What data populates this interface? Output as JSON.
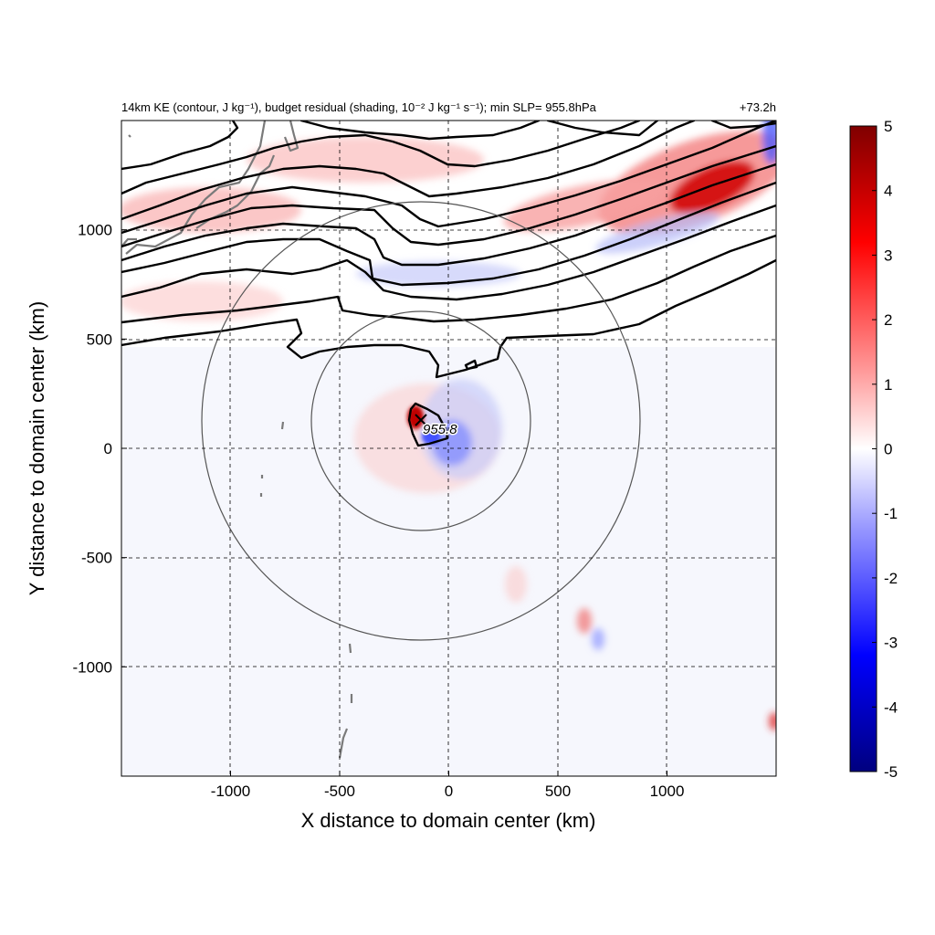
{
  "chart_data": {
    "type": "heatmap",
    "title": "14km KE (contour, J kg⁻¹), budget residual (shading, 10⁻² J kg⁻¹ s⁻¹); min SLP= 955.8hPa",
    "title_right": "+73.2h",
    "xlabel": "X distance to domain center (km)",
    "ylabel": "Y distance to domain center (km)",
    "xlim": [
      -1500,
      1500
    ],
    "ylim": [
      -1500,
      1500
    ],
    "x_ticks": [
      -1000,
      -500,
      0,
      500,
      1000
    ],
    "y_ticks": [
      -1000,
      -500,
      0,
      500,
      1000
    ],
    "x_tick_labels": [
      "-1000",
      "-500",
      "0",
      "500",
      "1000"
    ],
    "y_tick_labels": [
      "-1000",
      "-500",
      "0",
      "500",
      "1000"
    ],
    "grid": true,
    "colorbar": {
      "range": [
        -5,
        5
      ],
      "ticks": [
        5,
        4,
        3,
        2,
        1,
        0,
        -1,
        -2,
        -3,
        -4,
        -5
      ],
      "tick_labels": [
        "5",
        "4",
        "3",
        "2",
        "1",
        "0",
        "-1",
        "-2",
        "-3",
        "-4",
        "-5"
      ],
      "colormap": [
        "#00007f",
        "#0000ff",
        "#ffffff",
        "#ff0000",
        "#7f0000"
      ]
    },
    "storm_center": {
      "x": -125,
      "y": 130,
      "label": "955.8"
    },
    "range_rings_km": [
      500,
      1000
    ],
    "colors": {
      "positive": "#e8000b",
      "negative": "#1a33ff",
      "contour": "#000000",
      "coastline": "#7a7a7a",
      "ring": "#555555"
    }
  }
}
